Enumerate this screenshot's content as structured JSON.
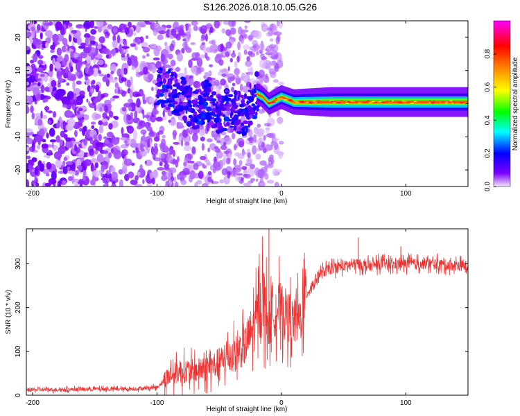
{
  "title": "S126.2026.018.10.05.G26",
  "chart_data": [
    {
      "type": "heatmap",
      "name": "spectrogram",
      "xlabel": "Height of straight line (km)",
      "ylabel": "Frequency (Hz)",
      "xlim": [
        -205,
        150
      ],
      "ylim": [
        -25,
        25
      ],
      "xticks": [
        -200,
        -100,
        0,
        100
      ],
      "xtick_labels": [
        "-200",
        "-100",
        "0",
        "100"
      ],
      "yticks": [
        -20,
        -10,
        0,
        10,
        20
      ],
      "ytick_labels": [
        "-20",
        "-10",
        "0",
        "10",
        "20"
      ],
      "colorbar": {
        "label": "Normalized spectral amplitude",
        "range": [
          0.0,
          1.0
        ],
        "ticks": [
          0.0,
          0.2,
          0.4,
          0.6,
          0.8
        ],
        "tick_labels": [
          "0.0",
          "0.2",
          "0.4",
          "0.6",
          "0.8"
        ],
        "colormap": [
          "#f4e8fb",
          "#7b00ff",
          "#0000ff",
          "#00ffff",
          "#00ff00",
          "#ffff00",
          "#ff8000",
          "#ff0000",
          "#ff00ff"
        ]
      },
      "ridge": {
        "x": [
          -95,
          -80,
          -70,
          -60,
          -50,
          -40,
          -30,
          -20,
          -15,
          -10,
          0,
          10,
          50,
          100,
          150
        ],
        "freq": [
          5,
          2,
          -2,
          1,
          -3,
          -1,
          -4,
          3,
          2,
          0,
          2,
          0.5,
          0.5,
          0.5,
          0.5
        ],
        "amplitude": [
          0.15,
          0.18,
          0.2,
          0.22,
          0.2,
          0.2,
          0.25,
          0.3,
          0.45,
          0.6,
          0.65,
          0.7,
          0.75,
          0.8,
          0.85
        ]
      },
      "notes": "Diffuse low-amplitude (purple) noise from -205 to about -20 km across -25..25 Hz; coherent ridge near 0-1 Hz for heights above about -20 km, reaching red (~0.9) amplitude toward 150 km."
    },
    {
      "type": "line",
      "name": "snr",
      "xlabel": "Height of straight line (km)",
      "ylabel": "SNR (10 * v/v)",
      "xlim": [
        -205,
        150
      ],
      "ylim": [
        0,
        380
      ],
      "xticks": [
        -200,
        -100,
        0,
        100
      ],
      "xtick_labels": [
        "-200",
        "-100",
        "0",
        "100"
      ],
      "yticks": [
        0,
        100,
        200,
        300
      ],
      "ytick_labels": [
        "0",
        "100",
        "200",
        "300"
      ],
      "color": "#ee3333",
      "x": [
        -205,
        -180,
        -150,
        -120,
        -100,
        -90,
        -80,
        -70,
        -60,
        -50,
        -40,
        -30,
        -20,
        -15,
        -10,
        -5,
        0,
        5,
        10,
        15,
        20,
        30,
        40,
        50,
        60,
        70,
        80,
        90,
        100,
        120,
        150
      ],
      "y": [
        12,
        13,
        14,
        14,
        18,
        45,
        55,
        55,
        60,
        75,
        90,
        110,
        170,
        230,
        160,
        200,
        195,
        180,
        165,
        175,
        230,
        275,
        290,
        295,
        300,
        295,
        300,
        298,
        300,
        300,
        295
      ],
      "spikes": [
        {
          "x": -10,
          "y": 385
        },
        {
          "x": 62,
          "y": 360
        },
        {
          "x": 96,
          "y": 340
        }
      ]
    }
  ]
}
